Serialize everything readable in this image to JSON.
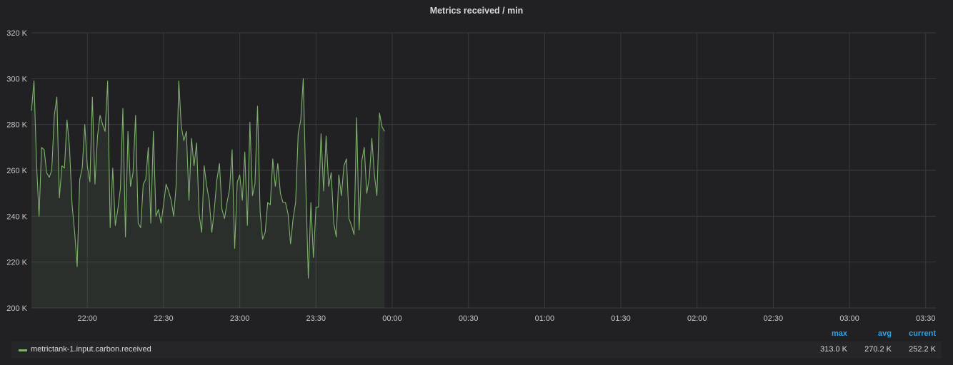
{
  "panel": {
    "title": "Metrics received / min"
  },
  "legend": {
    "headers": {
      "max": "max",
      "avg": "avg",
      "current": "current"
    },
    "series": [
      {
        "name": "metrictank-1.input.carbon.received",
        "max": "313.0 K",
        "avg": "270.2 K",
        "current": "252.2 K",
        "color": "#7eb26d"
      }
    ]
  },
  "colors": {
    "background": "#212124",
    "grid": "#3a3a3d",
    "line": "#7eb26d",
    "fill": "#7eb26d",
    "legend_header": "#33a2e5"
  },
  "chart_data": {
    "type": "area",
    "title": "Metrics received / min",
    "xlabel": "",
    "ylabel": "",
    "ylim": [
      200000,
      320000
    ],
    "xlim": [
      "21:38",
      "03:34"
    ],
    "y_ticks": [
      200000,
      220000,
      240000,
      260000,
      280000,
      300000,
      320000
    ],
    "y_tick_labels": [
      "200 K",
      "220 K",
      "240 K",
      "260 K",
      "280 K",
      "300 K",
      "320 K"
    ],
    "x_ticks": [
      "22:00",
      "22:30",
      "23:00",
      "23:30",
      "00:00",
      "00:30",
      "01:00",
      "01:30",
      "02:00",
      "02:30",
      "03:00",
      "03:30"
    ],
    "grid": true,
    "series": [
      {
        "name": "metrictank-1.input.carbon.received",
        "x_start": "21:38",
        "x_step_minutes": 1,
        "values": [
          286000,
          299000,
          263000,
          240000,
          270000,
          269000,
          259000,
          257000,
          260000,
          284000,
          292000,
          248000,
          262000,
          261000,
          282000,
          270000,
          245000,
          233000,
          218000,
          256000,
          261000,
          280000,
          262000,
          255000,
          292000,
          254000,
          275000,
          284000,
          280000,
          277000,
          299000,
          235000,
          261000,
          236000,
          243000,
          252000,
          287000,
          231000,
          277000,
          253000,
          259000,
          284000,
          237000,
          235000,
          254000,
          256000,
          270000,
          237000,
          277000,
          240000,
          243000,
          237000,
          245000,
          254000,
          251000,
          247000,
          240000,
          254000,
          299000,
          279000,
          273000,
          277000,
          247000,
          274000,
          262000,
          272000,
          241000,
          233000,
          262000,
          253000,
          247000,
          233000,
          243000,
          256000,
          263000,
          243000,
          239000,
          246000,
          252000,
          269000,
          226000,
          255000,
          258000,
          247000,
          268000,
          236000,
          281000,
          249000,
          254000,
          288000,
          242000,
          230000,
          233000,
          246000,
          245000,
          265000,
          253000,
          263000,
          250000,
          246000,
          246000,
          241000,
          228000,
          239000,
          246000,
          276000,
          282000,
          300000,
          253000,
          213000,
          246000,
          222000,
          244000,
          244000,
          276000,
          251000,
          275000,
          253000,
          259000,
          237000,
          231000,
          258000,
          249000,
          262000,
          265000,
          239000,
          236000,
          232000,
          283000,
          234000,
          264000,
          270000,
          250000,
          257000,
          274000,
          258000,
          249000,
          285000,
          279000,
          277000
        ]
      }
    ]
  }
}
